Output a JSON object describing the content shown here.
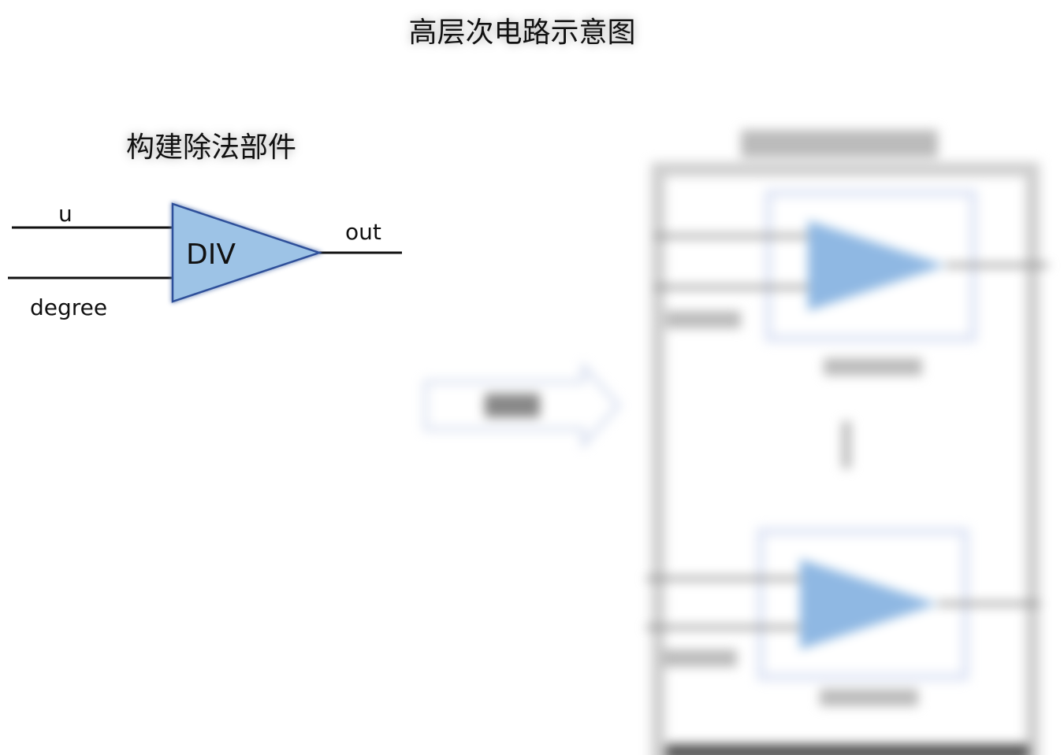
{
  "title": "高层次电路示意图",
  "divider": {
    "heading": "构建除法部件",
    "block_label": "DIV",
    "inputs": [
      "u",
      "degree"
    ],
    "output": "out",
    "fill_color": "#9dc3e6",
    "stroke_color": "#2f4f9a"
  }
}
